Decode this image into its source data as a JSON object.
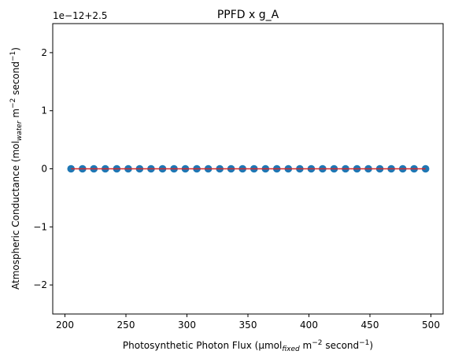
{
  "chart_data": {
    "type": "scatter",
    "title": "PPFD x g_A",
    "xlabel": {
      "pre": "Photosynthetic Photon Flux (µmol",
      "sub": "fixed",
      "mid1": " m",
      "sup1": "−2",
      "mid2": " second",
      "sup2": "−1",
      "post": ")"
    },
    "ylabel": {
      "pre": "Atmospheric Conductance (mol",
      "sub": "water",
      "mid1": " m",
      "sup1": "−2",
      "mid2": " second",
      "sup2": "−1",
      "post": ")"
    },
    "offset_text": "1e−12+2.5",
    "xlim": [
      190,
      510
    ],
    "ylim": [
      -2.5,
      2.5
    ],
    "y_units_note_scale": "1e-12 offset 2.5",
    "xticks": [
      200,
      250,
      300,
      350,
      400,
      450,
      500
    ],
    "xtick_labels": [
      "200",
      "250",
      "300",
      "350",
      "400",
      "450",
      "500"
    ],
    "yticks": [
      -2,
      -1,
      0,
      1,
      2
    ],
    "ytick_labels": [
      "−2",
      "−1",
      "0",
      "1",
      "2"
    ],
    "series": [
      {
        "marker_color": "#1f77b4",
        "x": [
          205,
          214.4,
          223.7,
          233.1,
          242.5,
          251.9,
          261.2,
          270.6,
          280,
          289.4,
          298.7,
          308.1,
          317.5,
          326.9,
          336.2,
          345.6,
          355,
          364.4,
          373.7,
          383.1,
          392.5,
          401.9,
          411.2,
          420.6,
          430,
          439.4,
          448.7,
          458.1,
          467.5,
          476.9,
          486.2,
          495.6
        ],
        "y": [
          0,
          0,
          0,
          0,
          0,
          0,
          0,
          0,
          0,
          0,
          0,
          0,
          0,
          0,
          0,
          0,
          0,
          0,
          0,
          0,
          0,
          0,
          0,
          0,
          0,
          0,
          0,
          0,
          0,
          0,
          0,
          0
        ]
      }
    ],
    "fit_line": {
      "color": "#d62728",
      "x": [
        205,
        495.6
      ],
      "y": [
        0,
        0
      ]
    },
    "grid": false
  }
}
